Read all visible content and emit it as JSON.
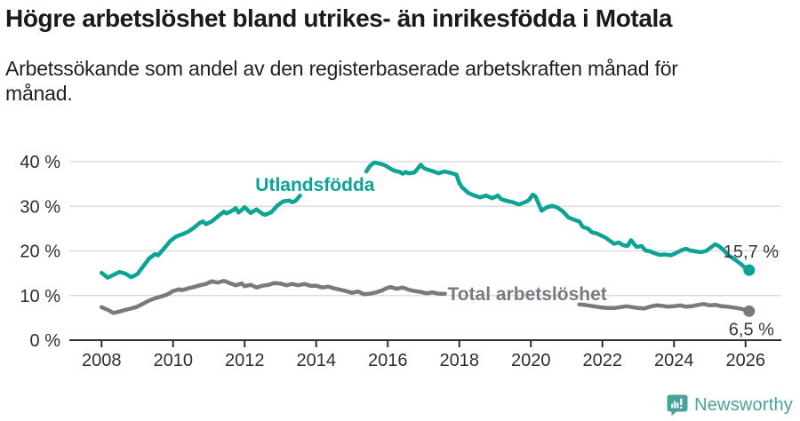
{
  "chart_data": {
    "type": "line",
    "title": "Högre arbetslöshet bland utrikes- än inrikesfödda i Motala",
    "subtitle": "Arbetssökande som andel av den registerbaserade arbetskraften månad för\nmånad.",
    "xlabel": "",
    "ylabel": "",
    "grid": "horizontal",
    "legend_position": "inline-on-lines",
    "x_domain": [
      2007.1,
      2027.0
    ],
    "y_domain": [
      0,
      40
    ],
    "x_tick_values": [
      2008,
      2010,
      2012,
      2014,
      2016,
      2018,
      2020,
      2022,
      2024,
      2026
    ],
    "x_tick_labels": [
      "2008",
      "2010",
      "2012",
      "2014",
      "2016",
      "2018",
      "2020",
      "2022",
      "2024",
      "2026"
    ],
    "y_tick_values": [
      0,
      10,
      20,
      30,
      40
    ],
    "y_tick_labels": [
      "0 %",
      "10 %",
      "20 %",
      "30 %",
      "40 %"
    ],
    "axis_color": "#2e2e2e",
    "grid_color": "#d8d8d8",
    "series": [
      {
        "name": "Total arbetslöshet",
        "color": "#797980",
        "end_label": "6,5 %",
        "end_value": 6.5,
        "line_label": {
          "text": "Total arbetslöshet",
          "x": 2017.67,
          "y": 9.0
        },
        "segments": [
          [
            [
              2008.0,
              7.4
            ],
            [
              2008.17,
              6.8
            ],
            [
              2008.33,
              6.1
            ],
            [
              2008.5,
              6.4
            ],
            [
              2008.67,
              6.8
            ],
            [
              2008.83,
              7.1
            ],
            [
              2009.0,
              7.5
            ],
            [
              2009.17,
              8.2
            ],
            [
              2009.33,
              8.9
            ],
            [
              2009.5,
              9.4
            ],
            [
              2009.67,
              9.8
            ],
            [
              2009.83,
              10.2
            ],
            [
              2010.0,
              11.0
            ],
            [
              2010.17,
              11.4
            ],
            [
              2010.25,
              11.2
            ],
            [
              2010.42,
              11.6
            ],
            [
              2010.58,
              11.9
            ],
            [
              2010.75,
              12.3
            ],
            [
              2010.92,
              12.6
            ],
            [
              2011.0,
              12.9
            ],
            [
              2011.08,
              13.2
            ],
            [
              2011.25,
              12.9
            ],
            [
              2011.42,
              13.3
            ],
            [
              2011.58,
              12.8
            ],
            [
              2011.75,
              12.3
            ],
            [
              2011.92,
              12.7
            ],
            [
              2012.0,
              12.1
            ],
            [
              2012.17,
              12.4
            ],
            [
              2012.33,
              11.8
            ],
            [
              2012.5,
              12.2
            ],
            [
              2012.67,
              12.4
            ],
            [
              2012.83,
              12.8
            ],
            [
              2013.0,
              12.7
            ],
            [
              2013.17,
              12.3
            ],
            [
              2013.33,
              12.6
            ],
            [
              2013.5,
              12.3
            ],
            [
              2013.67,
              12.6
            ],
            [
              2013.83,
              12.2
            ],
            [
              2014.0,
              12.2
            ],
            [
              2014.17,
              11.8
            ],
            [
              2014.33,
              12.0
            ],
            [
              2014.5,
              11.6
            ],
            [
              2014.67,
              11.3
            ],
            [
              2014.83,
              11.0
            ],
            [
              2015.0,
              10.6
            ],
            [
              2015.17,
              10.9
            ],
            [
              2015.33,
              10.3
            ],
            [
              2015.5,
              10.4
            ],
            [
              2015.67,
              10.7
            ],
            [
              2015.83,
              11.1
            ],
            [
              2015.95,
              11.6
            ],
            [
              2016.08,
              11.9
            ],
            [
              2016.25,
              11.5
            ],
            [
              2016.42,
              11.8
            ],
            [
              2016.58,
              11.3
            ],
            [
              2016.75,
              11.0
            ],
            [
              2016.92,
              10.8
            ],
            [
              2017.08,
              10.5
            ],
            [
              2017.25,
              10.7
            ],
            [
              2017.42,
              10.4
            ],
            [
              2017.6,
              10.4
            ]
          ],
          [
            [
              2021.35,
              8.0
            ],
            [
              2021.5,
              7.9
            ],
            [
              2021.67,
              7.7
            ],
            [
              2021.83,
              7.5
            ],
            [
              2022.0,
              7.3
            ],
            [
              2022.17,
              7.2
            ],
            [
              2022.33,
              7.2
            ],
            [
              2022.5,
              7.4
            ],
            [
              2022.67,
              7.6
            ],
            [
              2022.83,
              7.4
            ],
            [
              2023.0,
              7.2
            ],
            [
              2023.17,
              7.1
            ],
            [
              2023.33,
              7.5
            ],
            [
              2023.5,
              7.8
            ],
            [
              2023.67,
              7.7
            ],
            [
              2023.83,
              7.5
            ],
            [
              2024.0,
              7.6
            ],
            [
              2024.17,
              7.8
            ],
            [
              2024.33,
              7.5
            ],
            [
              2024.5,
              7.6
            ],
            [
              2024.67,
              7.9
            ],
            [
              2024.83,
              8.1
            ],
            [
              2025.0,
              7.8
            ],
            [
              2025.17,
              7.9
            ],
            [
              2025.33,
              7.6
            ],
            [
              2025.5,
              7.5
            ],
            [
              2025.67,
              7.3
            ],
            [
              2025.83,
              7.1
            ],
            [
              2026.0,
              6.8
            ],
            [
              2026.1,
              6.5
            ]
          ]
        ]
      },
      {
        "name": "Utlandsfödda",
        "color": "#0ba394",
        "end_label": "15,7 %",
        "end_value": 15.7,
        "line_label": {
          "text": "Utlandsfödda",
          "x": 2012.3,
          "y": 33.4
        },
        "segments": [
          [
            [
              2008.0,
              15.1
            ],
            [
              2008.17,
              14.0
            ],
            [
              2008.33,
              14.6
            ],
            [
              2008.5,
              15.3
            ],
            [
              2008.67,
              14.9
            ],
            [
              2008.83,
              14.1
            ],
            [
              2009.0,
              14.8
            ],
            [
              2009.17,
              16.6
            ],
            [
              2009.33,
              18.3
            ],
            [
              2009.5,
              19.3
            ],
            [
              2009.58,
              19.0
            ],
            [
              2009.75,
              20.6
            ],
            [
              2009.92,
              22.2
            ],
            [
              2010.08,
              23.2
            ],
            [
              2010.25,
              23.7
            ],
            [
              2010.42,
              24.3
            ],
            [
              2010.58,
              25.2
            ],
            [
              2010.75,
              26.3
            ],
            [
              2010.83,
              26.6
            ],
            [
              2010.92,
              26.0
            ],
            [
              2011.08,
              26.6
            ],
            [
              2011.25,
              27.7
            ],
            [
              2011.42,
              28.8
            ],
            [
              2011.5,
              28.4
            ],
            [
              2011.67,
              29.1
            ],
            [
              2011.75,
              29.6
            ],
            [
              2011.83,
              28.6
            ],
            [
              2011.92,
              29.2
            ],
            [
              2012.0,
              29.8
            ],
            [
              2012.17,
              28.5
            ],
            [
              2012.33,
              29.3
            ],
            [
              2012.5,
              28.3
            ],
            [
              2012.58,
              28.1
            ],
            [
              2012.75,
              28.7
            ],
            [
              2012.92,
              30.2
            ],
            [
              2013.08,
              31.1
            ],
            [
              2013.25,
              31.3
            ],
            [
              2013.33,
              30.9
            ],
            [
              2013.42,
              31.2
            ],
            [
              2013.55,
              32.4
            ]
          ],
          [
            [
              2015.4,
              37.8
            ],
            [
              2015.5,
              39.0
            ],
            [
              2015.62,
              39.8
            ],
            [
              2015.75,
              39.6
            ],
            [
              2015.92,
              39.2
            ],
            [
              2016.0,
              38.8
            ],
            [
              2016.17,
              38.0
            ],
            [
              2016.33,
              37.7
            ],
            [
              2016.42,
              37.3
            ],
            [
              2016.5,
              37.7
            ],
            [
              2016.58,
              37.4
            ],
            [
              2016.75,
              37.6
            ],
            [
              2016.92,
              39.3
            ],
            [
              2017.0,
              38.6
            ],
            [
              2017.08,
              38.3
            ],
            [
              2017.25,
              37.9
            ],
            [
              2017.42,
              37.4
            ],
            [
              2017.58,
              37.8
            ],
            [
              2017.75,
              37.5
            ],
            [
              2017.92,
              37.1
            ],
            [
              2018.0,
              35.2
            ],
            [
              2018.08,
              34.2
            ],
            [
              2018.25,
              33.0
            ],
            [
              2018.42,
              32.4
            ],
            [
              2018.58,
              32.0
            ],
            [
              2018.75,
              32.4
            ],
            [
              2018.92,
              31.8
            ],
            [
              2019.08,
              32.4
            ],
            [
              2019.17,
              31.6
            ],
            [
              2019.33,
              31.2
            ],
            [
              2019.5,
              30.9
            ],
            [
              2019.67,
              30.4
            ],
            [
              2019.83,
              30.9
            ],
            [
              2019.95,
              31.4
            ],
            [
              2020.05,
              32.6
            ],
            [
              2020.13,
              32.2
            ],
            [
              2020.3,
              29.0
            ],
            [
              2020.45,
              29.8
            ],
            [
              2020.6,
              30.1
            ],
            [
              2020.75,
              29.7
            ],
            [
              2020.9,
              28.8
            ],
            [
              2021.05,
              27.5
            ],
            [
              2021.2,
              27.0
            ],
            [
              2021.35,
              26.6
            ],
            [
              2021.45,
              25.4
            ],
            [
              2021.6,
              25.0
            ],
            [
              2021.7,
              24.2
            ],
            [
              2021.85,
              23.9
            ],
            [
              2022.0,
              23.3
            ],
            [
              2022.1,
              22.9
            ],
            [
              2022.2,
              22.3
            ],
            [
              2022.33,
              21.6
            ],
            [
              2022.45,
              21.9
            ],
            [
              2022.58,
              21.3
            ],
            [
              2022.7,
              21.1
            ],
            [
              2022.8,
              22.4
            ],
            [
              2022.95,
              20.9
            ],
            [
              2023.1,
              21.1
            ],
            [
              2023.2,
              20.1
            ],
            [
              2023.33,
              19.9
            ],
            [
              2023.45,
              19.5
            ],
            [
              2023.6,
              19.1
            ],
            [
              2023.75,
              19.2
            ],
            [
              2023.9,
              19.0
            ],
            [
              2024.05,
              19.5
            ],
            [
              2024.2,
              20.1
            ],
            [
              2024.33,
              20.5
            ],
            [
              2024.45,
              20.1
            ],
            [
              2024.6,
              19.9
            ],
            [
              2024.75,
              19.7
            ],
            [
              2024.9,
              20.0
            ],
            [
              2025.05,
              20.9
            ],
            [
              2025.15,
              21.5
            ],
            [
              2025.25,
              21.1
            ],
            [
              2025.4,
              20.1
            ],
            [
              2025.5,
              19.1
            ],
            [
              2025.62,
              18.5
            ],
            [
              2025.75,
              17.8
            ],
            [
              2025.88,
              17.0
            ],
            [
              2026.0,
              16.1
            ],
            [
              2026.1,
              15.7
            ]
          ]
        ]
      }
    ]
  },
  "footer": {
    "brand": "Newsworthy",
    "brand_color": "#4aa39b"
  }
}
